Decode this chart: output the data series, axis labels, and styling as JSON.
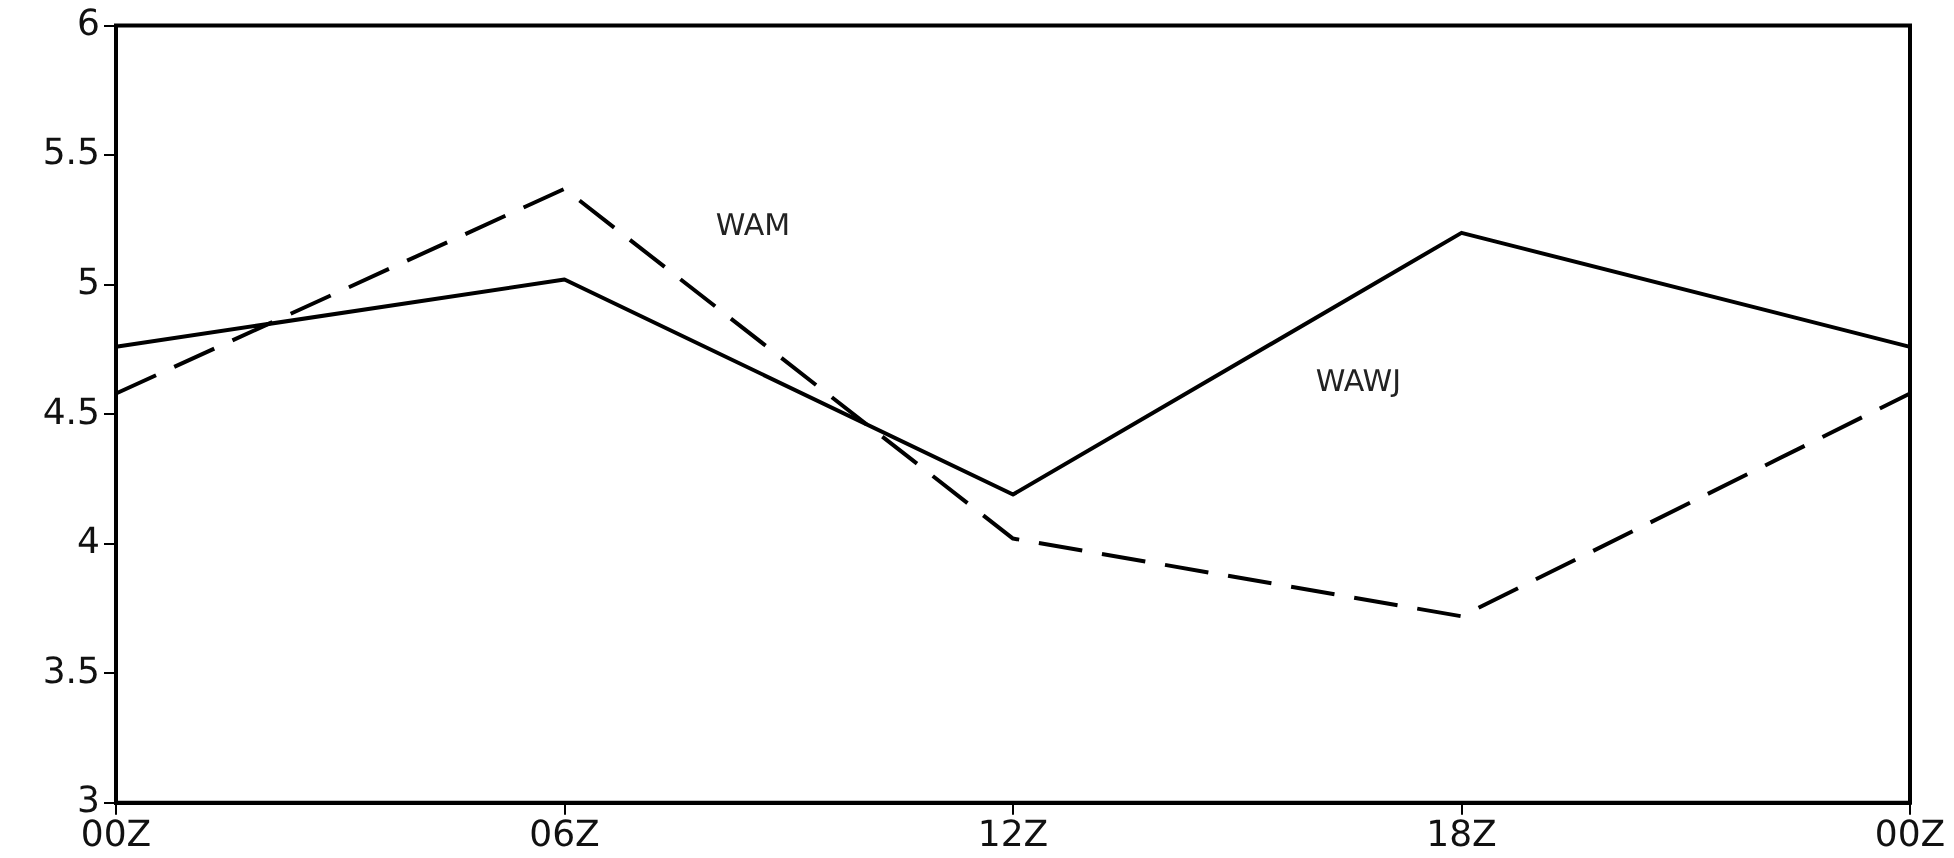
{
  "chart_data": {
    "type": "line",
    "categories": [
      "00Z",
      "06Z",
      "12Z",
      "18Z",
      "00Z"
    ],
    "series": [
      {
        "name": "WAWJ",
        "color": "#000000",
        "line_style": "solid",
        "values": [
          4.76,
          5.02,
          4.19,
          5.2,
          4.76
        ]
      },
      {
        "name": "WAM",
        "color": "#000000",
        "line_style": "dashed",
        "values": [
          4.58,
          5.37,
          4.02,
          3.72,
          4.58
        ]
      }
    ],
    "ylim": [
      3,
      6
    ],
    "yticks": [
      3,
      3.5,
      4,
      4.5,
      5,
      5.5,
      6
    ],
    "grid": false,
    "legend": false,
    "marker": "none"
  }
}
